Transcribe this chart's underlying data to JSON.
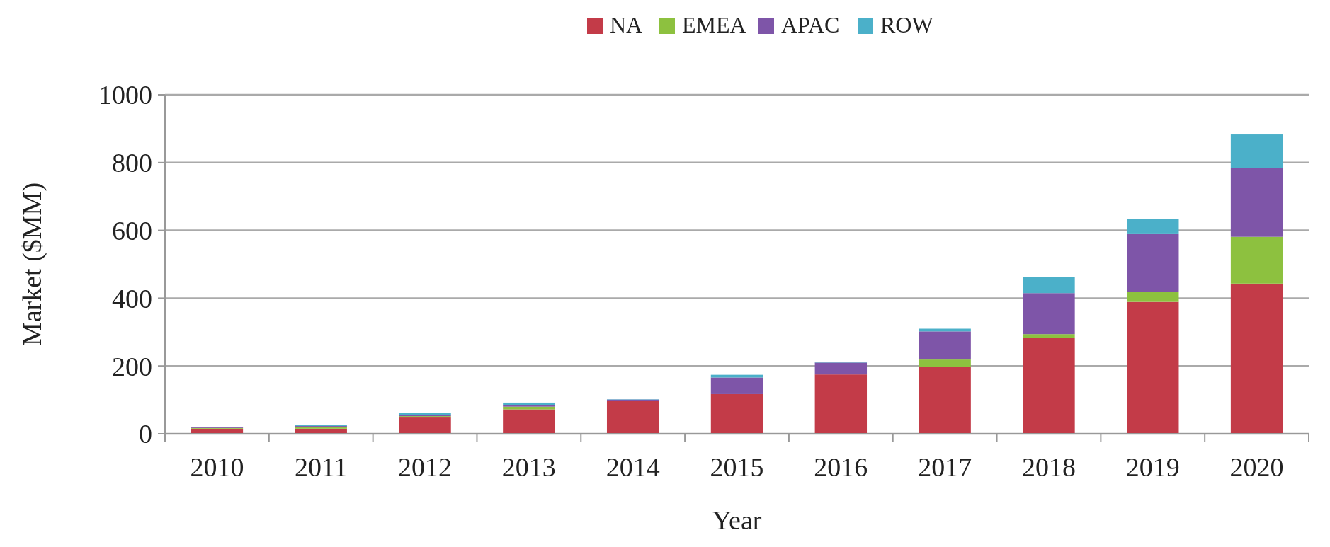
{
  "chart_data": {
    "type": "bar",
    "stacked": true,
    "xlabel": "Year",
    "ylabel": "Market ($MM)",
    "categories": [
      "2010",
      "2011",
      "2012",
      "2013",
      "2014",
      "2015",
      "2016",
      "2017",
      "2018",
      "2019",
      "2020"
    ],
    "series": [
      {
        "name": "NA",
        "color": "#c33b48",
        "values": [
          15,
          15,
          50,
          72,
          97,
          117,
          175,
          198,
          283,
          389,
          443
        ]
      },
      {
        "name": "EMEA",
        "color": "#8dc13f",
        "values": [
          2,
          6,
          2,
          8,
          0,
          null,
          null,
          21,
          11,
          30,
          138
        ]
      },
      {
        "name": "APAC",
        "color": "#7e55a8",
        "values": [
          2,
          2,
          3,
          5,
          4,
          49,
          35,
          83,
          121,
          172,
          202
        ]
      },
      {
        "name": "ROW",
        "color": "#4bb0c9",
        "values": [
          1,
          2,
          7,
          7,
          1,
          8,
          2,
          8,
          47,
          43,
          100
        ]
      }
    ],
    "ylim": [
      0,
      1000
    ],
    "yticks": [
      0,
      200,
      400,
      600,
      800,
      1000
    ],
    "grid": "y",
    "legend": "top"
  }
}
